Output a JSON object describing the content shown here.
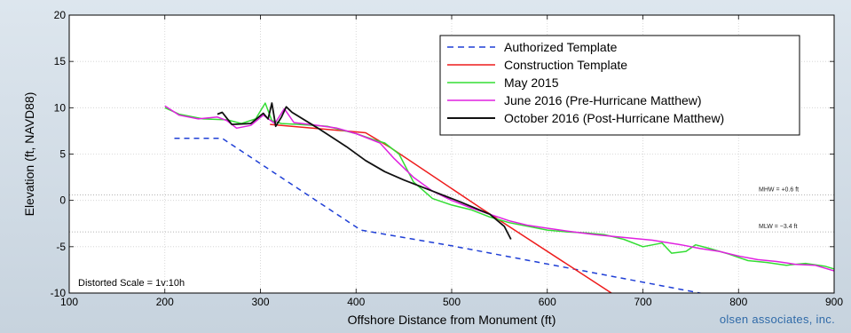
{
  "brand_text": "olsen associates, inc.",
  "chart_data": {
    "type": "line",
    "xlabel": "Offshore Distance from Monument (ft)",
    "ylabel": "Elevation (ft, NAVD88)",
    "xlim": [
      100,
      900
    ],
    "ylim": [
      -10,
      20
    ],
    "xticks": [
      100,
      200,
      300,
      400,
      500,
      600,
      700,
      800,
      900
    ],
    "yticks": [
      -10,
      -5,
      0,
      5,
      10,
      15,
      20
    ],
    "grid": true,
    "legend_position": "top-right",
    "reference_lines": [
      {
        "label": "MHW = +0.6 ft",
        "y": 0.6
      },
      {
        "label": "MLW = −3.4 ft",
        "y": -3.4
      }
    ],
    "annotation": "Distorted Scale = 1v:10h",
    "series": [
      {
        "name": "Authorized Template",
        "color": "#1f3fd6",
        "dash": true,
        "points": [
          [
            210,
            6.7
          ],
          [
            260,
            6.7
          ],
          [
            405,
            -3.2
          ],
          [
            500,
            -4.9
          ],
          [
            770,
            -10.2
          ]
        ]
      },
      {
        "name": "Construction Template",
        "color": "#ee1c1c",
        "dash": false,
        "points": [
          [
            310,
            8.2
          ],
          [
            410,
            7.3
          ],
          [
            436,
            5.7
          ],
          [
            530,
            -0.8
          ],
          [
            670,
            -10.2
          ]
        ]
      },
      {
        "name": "May 2015",
        "color": "#33dd33",
        "dash": false,
        "points": [
          [
            200,
            10.0
          ],
          [
            215,
            9.3
          ],
          [
            240,
            8.8
          ],
          [
            265,
            8.7
          ],
          [
            280,
            8.3
          ],
          [
            295,
            8.8
          ],
          [
            305,
            10.5
          ],
          [
            312,
            8.6
          ],
          [
            322,
            8.3
          ],
          [
            340,
            8.2
          ],
          [
            370,
            8.0
          ],
          [
            400,
            7.2
          ],
          [
            420,
            6.5
          ],
          [
            430,
            6.2
          ],
          [
            445,
            5.0
          ],
          [
            460,
            2.0
          ],
          [
            480,
            0.2
          ],
          [
            500,
            -0.5
          ],
          [
            520,
            -1.0
          ],
          [
            540,
            -1.8
          ],
          [
            560,
            -2.4
          ],
          [
            580,
            -2.8
          ],
          [
            600,
            -3.2
          ],
          [
            620,
            -3.4
          ],
          [
            640,
            -3.5
          ],
          [
            660,
            -3.7
          ],
          [
            680,
            -4.2
          ],
          [
            700,
            -5.0
          ],
          [
            720,
            -4.6
          ],
          [
            730,
            -5.7
          ],
          [
            745,
            -5.5
          ],
          [
            755,
            -4.8
          ],
          [
            770,
            -5.2
          ],
          [
            790,
            -5.8
          ],
          [
            810,
            -6.5
          ],
          [
            830,
            -6.7
          ],
          [
            850,
            -7.0
          ],
          [
            870,
            -6.8
          ],
          [
            890,
            -7.1
          ],
          [
            900,
            -7.4
          ]
        ]
      },
      {
        "name": "June 2016 (Pre-Hurricane Matthew)",
        "color": "#e020e0",
        "dash": false,
        "points": [
          [
            200,
            10.2
          ],
          [
            215,
            9.2
          ],
          [
            235,
            8.8
          ],
          [
            255,
            9.0
          ],
          [
            265,
            8.6
          ],
          [
            275,
            7.8
          ],
          [
            290,
            8.1
          ],
          [
            303,
            9.2
          ],
          [
            315,
            8.3
          ],
          [
            325,
            9.9
          ],
          [
            335,
            8.4
          ],
          [
            360,
            8.1
          ],
          [
            380,
            7.8
          ],
          [
            400,
            7.2
          ],
          [
            425,
            6.2
          ],
          [
            440,
            4.5
          ],
          [
            460,
            2.5
          ],
          [
            480,
            1.0
          ],
          [
            500,
            0.0
          ],
          [
            520,
            -0.8
          ],
          [
            540,
            -1.5
          ],
          [
            560,
            -2.2
          ],
          [
            580,
            -2.7
          ],
          [
            600,
            -3.0
          ],
          [
            620,
            -3.3
          ],
          [
            650,
            -3.7
          ],
          [
            680,
            -4.0
          ],
          [
            710,
            -4.3
          ],
          [
            740,
            -4.8
          ],
          [
            760,
            -5.2
          ],
          [
            780,
            -5.5
          ],
          [
            800,
            -6.0
          ],
          [
            820,
            -6.4
          ],
          [
            840,
            -6.6
          ],
          [
            860,
            -6.9
          ],
          [
            880,
            -7.0
          ],
          [
            900,
            -7.6
          ]
        ]
      },
      {
        "name": "October 2016 (Post-Hurricane Matthew)",
        "color": "#111111",
        "dash": false,
        "points": [
          [
            255,
            9.3
          ],
          [
            260,
            9.5
          ],
          [
            270,
            8.2
          ],
          [
            290,
            8.3
          ],
          [
            303,
            9.4
          ],
          [
            308,
            8.8
          ],
          [
            312,
            10.5
          ],
          [
            316,
            8.0
          ],
          [
            322,
            9.0
          ],
          [
            327,
            10.1
          ],
          [
            333,
            9.5
          ],
          [
            360,
            7.8
          ],
          [
            390,
            5.8
          ],
          [
            410,
            4.3
          ],
          [
            430,
            3.1
          ],
          [
            450,
            2.2
          ],
          [
            480,
            1.0
          ],
          [
            510,
            -0.2
          ],
          [
            540,
            -1.5
          ],
          [
            555,
            -2.8
          ],
          [
            562,
            -4.2
          ]
        ]
      }
    ]
  }
}
